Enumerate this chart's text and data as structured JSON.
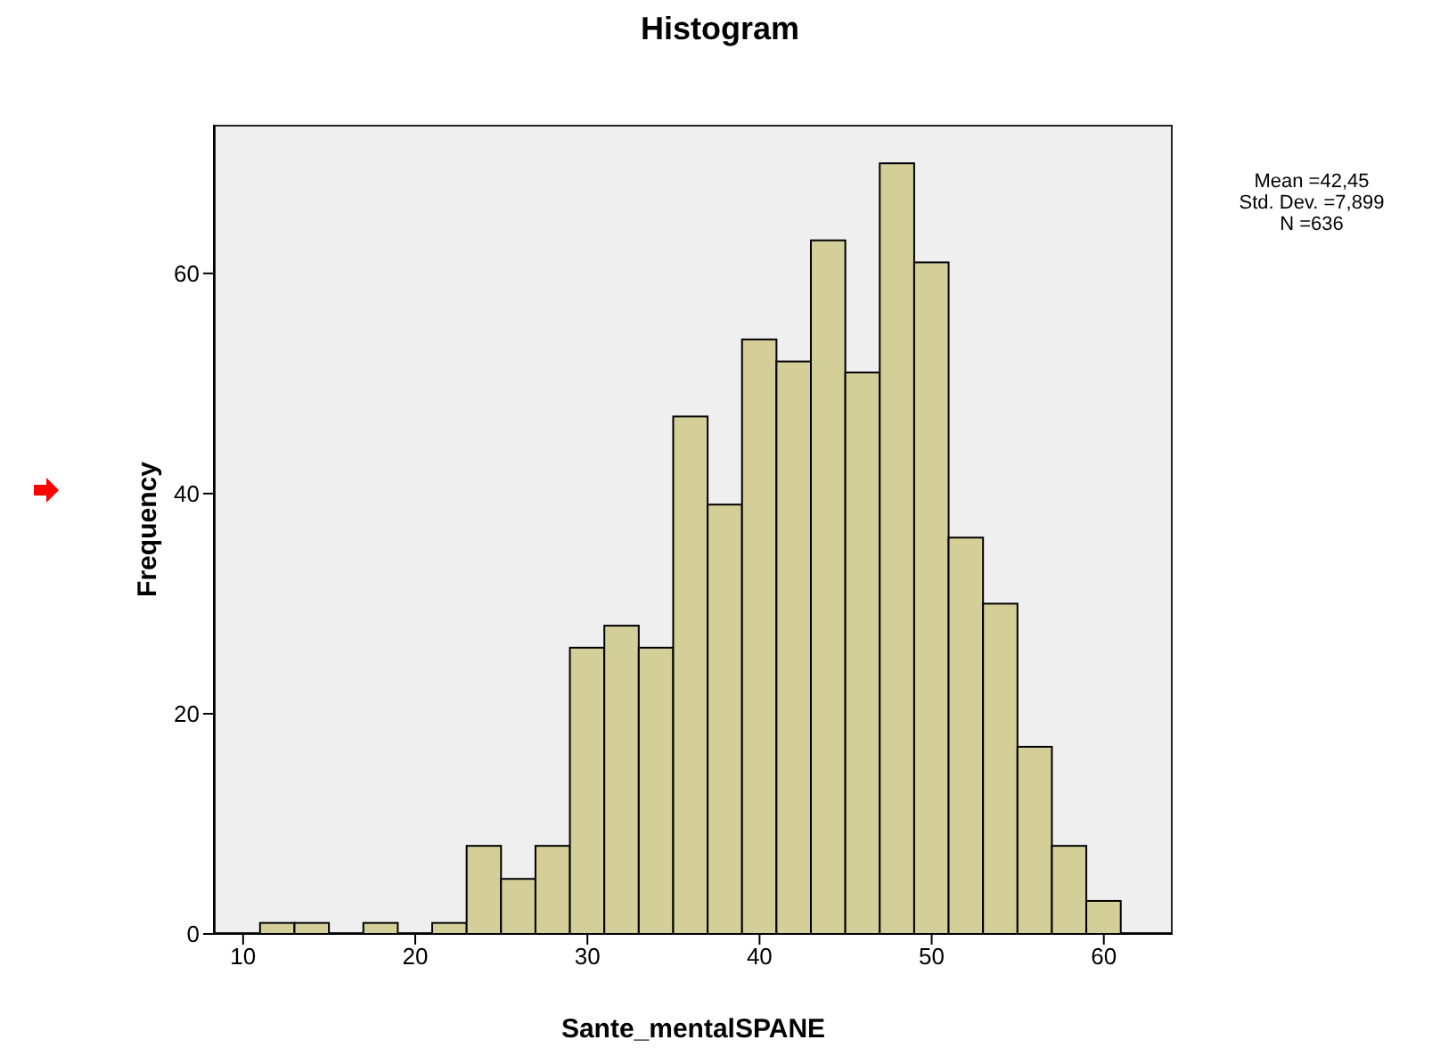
{
  "chart_data": {
    "type": "histogram",
    "title": "Histogram",
    "xlabel": "Sante_mentalSPANE",
    "ylabel": "Frequency",
    "bins": [
      11,
      13,
      15,
      17,
      19,
      21,
      23,
      25,
      27,
      29,
      31,
      33,
      35,
      37,
      39,
      41,
      43,
      45,
      47,
      49,
      51,
      53,
      55,
      57,
      59,
      61
    ],
    "values": [
      1,
      1,
      0,
      1,
      0,
      1,
      8,
      5,
      8,
      26,
      28,
      26,
      47,
      39,
      54,
      52,
      63,
      51,
      70,
      61,
      36,
      30,
      17,
      8,
      3
    ],
    "color": "#d4cf99",
    "xlim": [
      8.3,
      64
    ],
    "xticks": [
      10,
      20,
      30,
      40,
      50,
      60
    ],
    "ylim": [
      0,
      73.5
    ],
    "yticks": [
      0,
      20,
      40,
      60
    ],
    "annotations": [
      "Mean =42,45\nStd. Dev. =7,899\nN =636"
    ]
  }
}
